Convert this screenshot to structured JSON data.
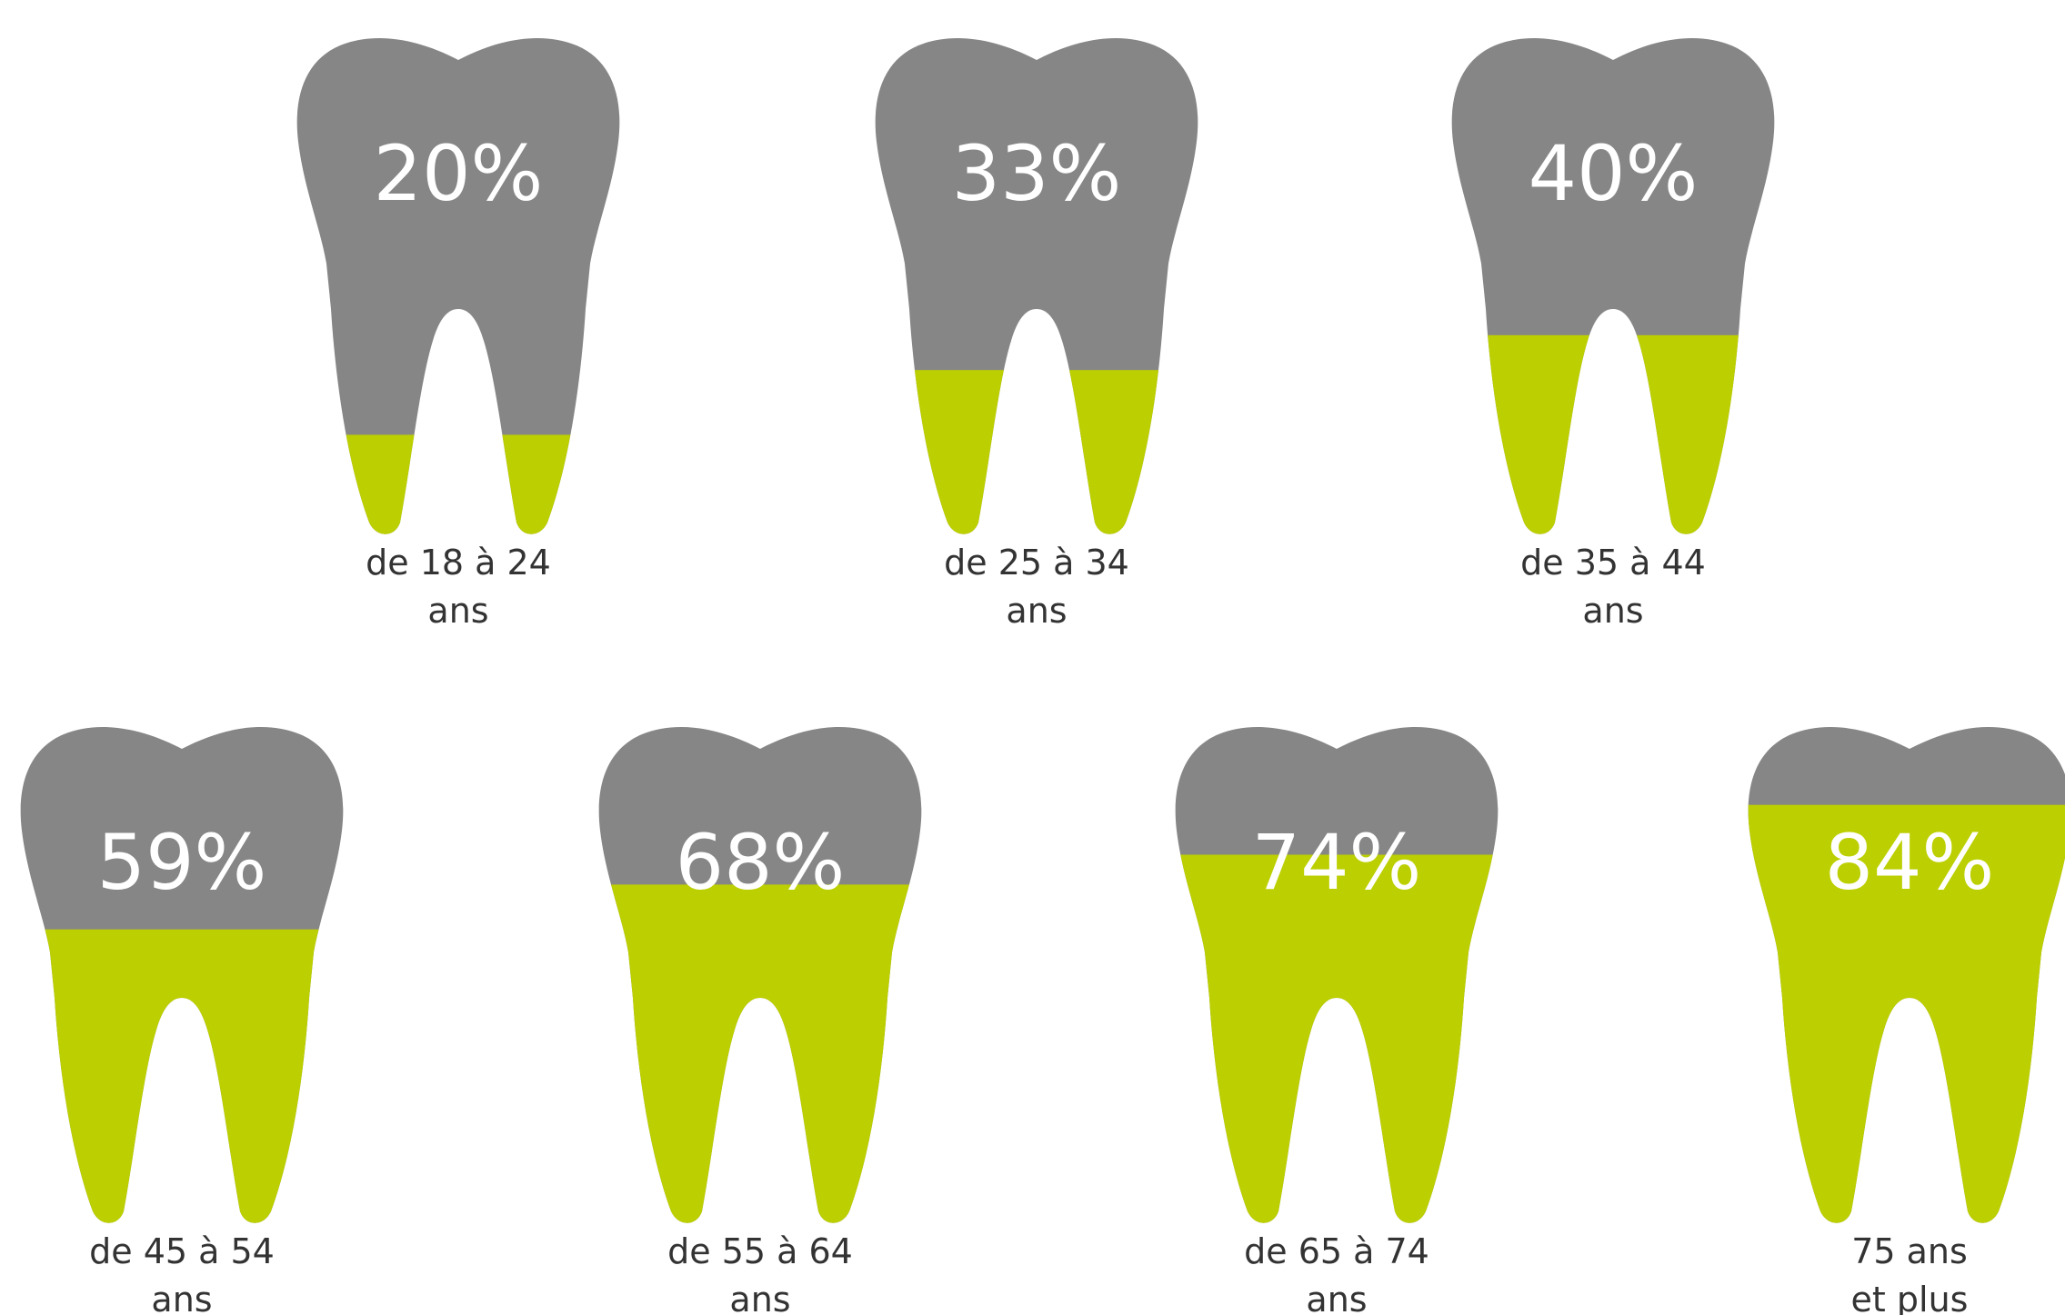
{
  "chart_data": {
    "type": "bar",
    "categories": [
      [
        "de 18 à 24",
        "ans"
      ],
      [
        "de 25 à 34",
        "ans"
      ],
      [
        "de 35 à 44",
        "ans"
      ],
      [
        "de 45 à 54",
        "ans"
      ],
      [
        "de 55 à 64",
        "ans"
      ],
      [
        "de 65 à 74",
        "ans"
      ],
      [
        "75 ans",
        "et plus"
      ]
    ],
    "values": [
      20,
      33,
      40,
      59,
      68,
      74,
      84
    ],
    "value_labels": [
      "20%",
      "33%",
      "40%",
      "59%",
      "68%",
      "74%",
      "84%"
    ],
    "unit": "%",
    "ylim": [
      0,
      100
    ]
  },
  "colors": {
    "fill": "#bccf00",
    "empty": "#868686",
    "label_text": "#ffffff",
    "category_text": "#333333",
    "background": "#ffffff"
  },
  "icons": {
    "mark": "tooth-icon"
  }
}
